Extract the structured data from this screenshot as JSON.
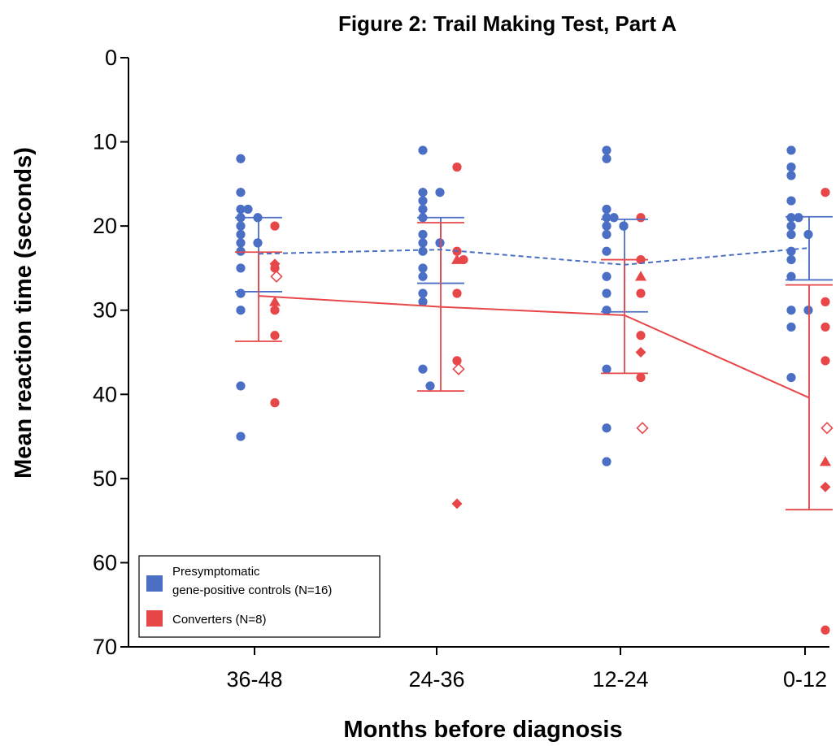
{
  "chart_data": {
    "type": "scatter",
    "title": "Figure 2: Trail Making Test, Part A",
    "xlabel": "Months before diagnosis",
    "ylabel": "Mean reaction time (seconds)",
    "categories": [
      "36-48",
      "24-36",
      "12-24",
      "0-12"
    ],
    "ylim": [
      0,
      70
    ],
    "y_inverted": true,
    "yticks": [
      0,
      10,
      20,
      30,
      40,
      50,
      60,
      70
    ],
    "legend_position": "bottom-left",
    "colors": {
      "controls": "#4a6fc4",
      "converters": "#e8474a"
    },
    "series": [
      {
        "name": "Presymptomatic gene-positive controls (N=16)",
        "color": "#4a6fc4",
        "mean_line_style": "dashed",
        "means": [
          23.3,
          22.8,
          24.6,
          22.6
        ],
        "error_bars": [
          [
            19.0,
            27.8
          ],
          [
            19.0,
            26.8
          ],
          [
            19.2,
            30.2
          ],
          [
            18.9,
            26.4
          ]
        ],
        "points": [
          [
            12,
            16,
            18,
            19,
            20,
            21,
            22,
            23,
            25,
            28,
            30,
            39,
            45,
            18,
            22,
            19
          ],
          [
            11,
            16,
            17,
            18,
            19,
            21,
            22,
            23,
            25,
            26,
            28,
            29,
            37,
            39,
            16,
            22
          ],
          [
            11,
            12,
            18,
            19,
            20,
            21,
            23,
            26,
            28,
            30,
            37,
            44,
            48,
            19,
            20,
            20
          ],
          [
            11,
            13,
            14,
            17,
            19,
            20,
            21,
            23,
            24,
            26,
            30,
            32,
            38,
            19,
            21,
            30
          ]
        ]
      },
      {
        "name": "Converters (N=8)",
        "color": "#e8474a",
        "mean_line_style": "solid",
        "means": [
          28.3,
          29.6,
          30.6,
          40.4
        ],
        "error_bars": [
          [
            23.1,
            33.7
          ],
          [
            19.6,
            39.6
          ],
          [
            24.0,
            37.5
          ],
          [
            27.0,
            53.7
          ]
        ],
        "points": [
          {
            "circles": [
              20,
              30,
              33,
              41,
              25
            ],
            "filled_diamond": 24.5,
            "open_diamond": 26,
            "triangle": 29
          },
          {
            "circles": [
              13,
              23,
              28,
              36,
              24
            ],
            "filled_diamond": 53,
            "open_diamond": 37,
            "triangle": 24
          },
          {
            "circles": [
              19,
              24,
              28,
              33,
              38
            ],
            "filled_diamond": 35,
            "open_diamond": 44,
            "triangle": 26
          },
          {
            "circles": [
              16,
              29,
              32,
              36,
              68
            ],
            "filled_diamond": 51,
            "open_diamond": 44,
            "triangle": 48
          }
        ]
      }
    ],
    "legend": {
      "entries": [
        {
          "line1": "Presymptomatic",
          "line2": "gene-positive controls (N=16)",
          "color": "#4a6fc4"
        },
        {
          "line1": "Converters (N=8)",
          "line2": "",
          "color": "#e8474a"
        }
      ]
    }
  }
}
